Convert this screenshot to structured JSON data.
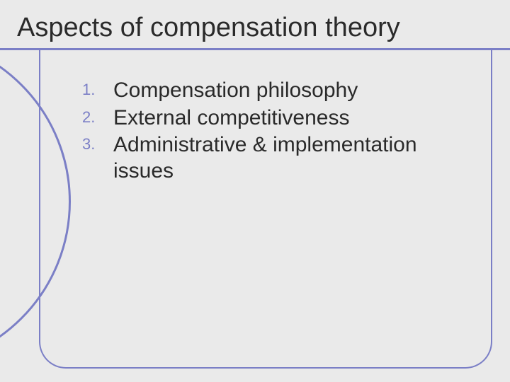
{
  "slide": {
    "title": "Aspects of compensation theory",
    "accent_color": "#7b7fc6",
    "background_color": "#eaeaea",
    "text_color": "#2a2a2a",
    "title_fontsize": 38,
    "body_fontsize": 30,
    "number_fontsize": 22
  },
  "list": {
    "items": [
      {
        "number": "1.",
        "text": "Compensation philosophy"
      },
      {
        "number": "2.",
        "text": "External competitiveness"
      },
      {
        "number": "3.",
        "text": "Administrative & implementation issues"
      }
    ]
  }
}
